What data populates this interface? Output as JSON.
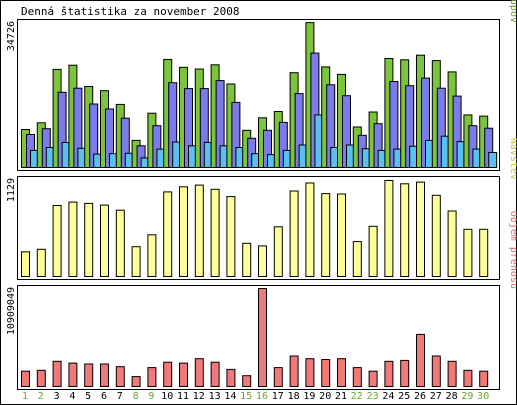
{
  "title": "Denná štatistika za november 2008",
  "colors": {
    "hits": "#7cc43c",
    "files": "#7b7bea",
    "pages": "#5bc0f0",
    "visits": "#ffff99",
    "kbytes": "#f07a7a",
    "weekday_label": "#000000",
    "weekend_label": "#67a72b",
    "label_hits": "#67a72b",
    "label_files": "#6a6ae0",
    "label_pages": "#3aa8e0",
    "label_visits": "#c8c840",
    "label_kbytes": "#e86a6a"
  },
  "chart_data": [
    {
      "type": "bar",
      "panel": "top",
      "max_label": "34726",
      "ylim": [
        0,
        34726
      ],
      "side_label": [
        "Stránok",
        "Súborov",
        "Prístupov"
      ],
      "x": [
        1,
        2,
        3,
        4,
        5,
        6,
        7,
        8,
        9,
        10,
        11,
        12,
        13,
        14,
        15,
        16,
        17,
        18,
        19,
        20,
        21,
        22,
        23,
        24,
        25,
        26,
        27,
        28,
        29,
        30
      ],
      "weekend_days": [
        1,
        2,
        8,
        9,
        15,
        16,
        22,
        23,
        29,
        30
      ],
      "series": [
        {
          "name": "Prístupov",
          "values": [
            9100,
            10700,
            23500,
            24500,
            19400,
            18400,
            15100,
            6500,
            13000,
            25900,
            24000,
            23600,
            24600,
            20000,
            8900,
            11900,
            13400,
            22700,
            34700,
            24100,
            22300,
            9700,
            13300,
            26100,
            25800,
            26900,
            25600,
            22900,
            12600,
            12300
          ]
        },
        {
          "name": "Súborov",
          "values": [
            7900,
            9300,
            18000,
            19000,
            15200,
            14000,
            11800,
            5200,
            10000,
            20300,
            18900,
            18900,
            20800,
            15600,
            7000,
            8900,
            10800,
            17700,
            27400,
            19800,
            17200,
            7700,
            10500,
            20600,
            19600,
            21400,
            19000,
            17100,
            10000,
            9400
          ]
        },
        {
          "name": "Stránok",
          "values": [
            4100,
            4800,
            6000,
            4600,
            3200,
            3300,
            3400,
            2300,
            4400,
            6100,
            5200,
            6000,
            5200,
            4800,
            3300,
            3100,
            4100,
            5400,
            12600,
            4800,
            5400,
            4500,
            4100,
            4400,
            5100,
            6500,
            7500,
            6200,
            4400,
            3600
          ]
        }
      ]
    },
    {
      "type": "bar",
      "panel": "middle",
      "max_label": "1129",
      "ylim": [
        0,
        1129
      ],
      "side_label": [
        "Návštev"
      ],
      "x": [
        1,
        2,
        3,
        4,
        5,
        6,
        7,
        8,
        9,
        10,
        11,
        12,
        13,
        14,
        15,
        16,
        17,
        18,
        19,
        20,
        21,
        22,
        23,
        24,
        25,
        26,
        27,
        28,
        29,
        30
      ],
      "series": [
        {
          "name": "Návštev",
          "values": [
            290,
            320,
            835,
            875,
            860,
            840,
            780,
            350,
            490,
            995,
            1055,
            1075,
            1025,
            940,
            390,
            360,
            585,
            1005,
            1100,
            975,
            970,
            410,
            590,
            1129,
            1090,
            1110,
            955,
            770,
            555,
            555
          ]
        }
      ]
    },
    {
      "type": "bar",
      "panel": "bottom",
      "max_label": "10909049",
      "ylim": [
        0,
        10909049
      ],
      "side_label": [
        "Objem prenosu"
      ],
      "x": [
        1,
        2,
        3,
        4,
        5,
        6,
        7,
        8,
        9,
        10,
        11,
        12,
        13,
        14,
        15,
        16,
        17,
        18,
        19,
        20,
        21,
        22,
        23,
        24,
        25,
        26,
        27,
        28,
        29,
        30
      ],
      "series": [
        {
          "name": "Objem prenosu",
          "values": [
            1700000,
            1800000,
            2800000,
            2600000,
            2500000,
            2500000,
            2200000,
            1100000,
            2100000,
            2700000,
            2600000,
            3100000,
            2700000,
            1900000,
            1200000,
            10909049,
            2100000,
            3400000,
            3100000,
            3000000,
            3100000,
            2100000,
            1700000,
            2800000,
            2900000,
            5800000,
            3400000,
            2800000,
            1800000,
            1700000
          ]
        }
      ]
    }
  ]
}
